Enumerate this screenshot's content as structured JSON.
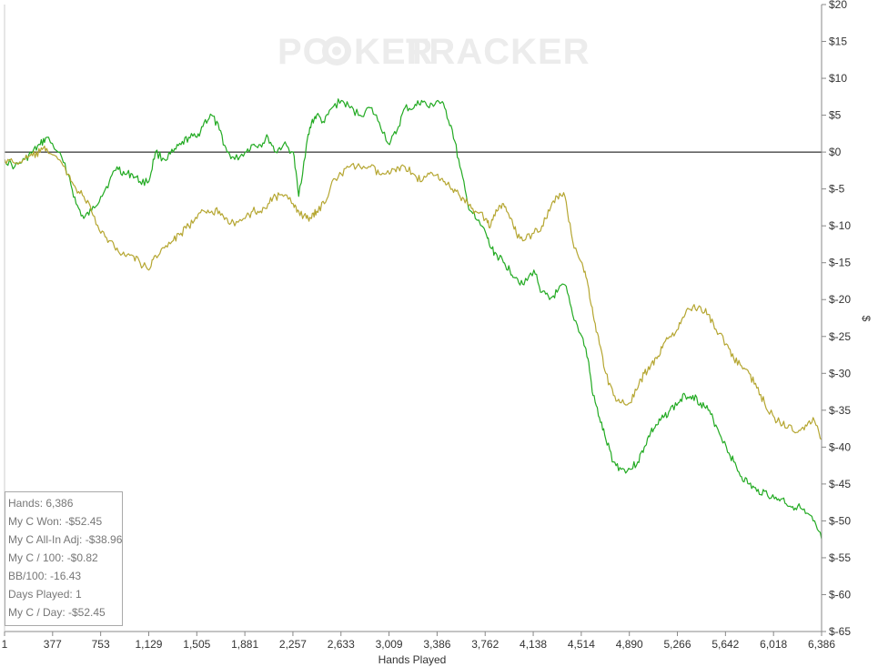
{
  "watermark": {
    "part1": "PO",
    "part2": "KER",
    "part3": "TRACKER"
  },
  "stats_box": [
    {
      "label": "Hands",
      "value": "6,386"
    },
    {
      "label": "My C Won",
      "value": "-$52.45"
    },
    {
      "label": "My C All-In Adj",
      "value": "-$38.96"
    },
    {
      "label": "My C / 100",
      "value": "-$0.82"
    },
    {
      "label": "BB/100",
      "value": "-16.43"
    },
    {
      "label": "Days Played",
      "value": "1"
    },
    {
      "label": "My C / Day",
      "value": "-$52.45"
    }
  ],
  "chart_data": {
    "type": "line",
    "xlabel": "Hands Played",
    "ylabel": "$",
    "xlim": [
      1,
      6386
    ],
    "ylim": [
      -65,
      20
    ],
    "x_ticks": [
      "1",
      "377",
      "753",
      "1,129",
      "1,505",
      "1,881",
      "2,257",
      "2,633",
      "3,009",
      "3,386",
      "3,762",
      "4,138",
      "4,514",
      "4,890",
      "5,266",
      "5,642",
      "6,018",
      "6,386"
    ],
    "y_ticks": [
      "$20",
      "$15",
      "$10",
      "$5",
      "$0",
      "$-5",
      "$-10",
      "$-15",
      "$-20",
      "$-25",
      "$-30",
      "$-35",
      "$-40",
      "$-45",
      "$-50",
      "$-55",
      "$-60",
      "$-65"
    ],
    "y_tick_values": [
      20,
      15,
      10,
      5,
      0,
      -5,
      -10,
      -15,
      -20,
      -25,
      -30,
      -35,
      -40,
      -45,
      -50,
      -55,
      -60,
      -65
    ],
    "zero_line": 0,
    "series": [
      {
        "color": "#22aa22",
        "x": [
          1,
          80,
          160,
          220,
          280,
          330,
          420,
          500,
          560,
          620,
          680,
          753,
          820,
          880,
          940,
          1000,
          1060,
          1129,
          1180,
          1250,
          1320,
          1380,
          1440,
          1505,
          1560,
          1620,
          1680,
          1740,
          1800,
          1881,
          1940,
          2000,
          2060,
          2120,
          2180,
          2257,
          2300,
          2360,
          2400,
          2440,
          2500,
          2560,
          2633,
          2700,
          2780,
          2860,
          2930,
          3009,
          3070,
          3130,
          3200,
          3260,
          3320,
          3386,
          3440,
          3500,
          3560,
          3620,
          3680,
          3762,
          3800,
          3850,
          3900,
          3950,
          4000,
          4060,
          4138,
          4200,
          4260,
          4320,
          4380,
          4440,
          4514,
          4560,
          4600,
          4650,
          4700,
          4760,
          4820,
          4890,
          4950,
          5000,
          5050,
          5100,
          5150,
          5200,
          5266,
          5320,
          5380,
          5440,
          5500,
          5560,
          5642,
          5700,
          5760,
          5820,
          5880,
          5940,
          6018,
          6080,
          6140,
          6200,
          6260,
          6320,
          6386
        ],
        "values": [
          -1,
          -2,
          -1,
          0,
          1,
          2,
          0,
          -3,
          -7,
          -9,
          -8,
          -6,
          -4,
          -2,
          -3,
          -3,
          -4,
          -4,
          0,
          -1,
          0,
          1,
          2,
          2,
          4,
          5,
          3,
          0,
          -1,
          0,
          1,
          1,
          2,
          0,
          1,
          0,
          -6,
          1,
          4,
          5,
          4,
          6,
          7,
          6,
          5,
          6,
          4,
          1,
          3,
          6,
          6,
          7,
          6,
          7,
          6,
          3,
          -2,
          -7,
          -9,
          -11,
          -13,
          -14,
          -15,
          -16,
          -17,
          -18,
          -16,
          -19,
          -20,
          -19,
          -18,
          -22,
          -25,
          -28,
          -33,
          -36,
          -39,
          -42,
          -43,
          -43,
          -42,
          -40,
          -38,
          -37,
          -36,
          -35,
          -34,
          -33,
          -33,
          -34,
          -35,
          -37,
          -40,
          -42,
          -44,
          -45,
          -46,
          -46,
          -47,
          -47,
          -48,
          -48,
          -49,
          -50,
          -52.45
        ]
      },
      {
        "color": "#b5a631",
        "x": [
          1,
          80,
          160,
          220,
          280,
          330,
          420,
          500,
          560,
          620,
          680,
          753,
          820,
          880,
          940,
          1000,
          1060,
          1129,
          1180,
          1250,
          1320,
          1380,
          1440,
          1505,
          1560,
          1620,
          1680,
          1740,
          1800,
          1881,
          1940,
          2000,
          2060,
          2120,
          2180,
          2257,
          2300,
          2360,
          2400,
          2440,
          2500,
          2560,
          2633,
          2700,
          2780,
          2860,
          2930,
          3009,
          3070,
          3130,
          3200,
          3260,
          3320,
          3386,
          3440,
          3500,
          3560,
          3620,
          3680,
          3762,
          3800,
          3850,
          3900,
          3950,
          4000,
          4060,
          4138,
          4200,
          4260,
          4320,
          4380,
          4440,
          4514,
          4560,
          4600,
          4650,
          4700,
          4760,
          4820,
          4890,
          4950,
          5000,
          5050,
          5100,
          5150,
          5200,
          5266,
          5320,
          5380,
          5440,
          5500,
          5560,
          5642,
          5700,
          5760,
          5820,
          5880,
          5940,
          6018,
          6080,
          6140,
          6200,
          6260,
          6320,
          6386
        ],
        "values": [
          -1,
          -1.5,
          -1,
          -0.5,
          0,
          0.5,
          -1,
          -3,
          -5,
          -6,
          -8,
          -11,
          -12,
          -13,
          -14,
          -14,
          -15,
          -16,
          -14,
          -13,
          -12,
          -11,
          -10,
          -9,
          -8,
          -8,
          -8,
          -9,
          -10,
          -9,
          -8,
          -8,
          -7,
          -6,
          -6,
          -7,
          -8,
          -9,
          -9,
          -8,
          -7,
          -4,
          -3,
          -2,
          -2,
          -2,
          -3,
          -3,
          -2,
          -2,
          -3,
          -4,
          -3,
          -3,
          -4,
          -5,
          -6,
          -7,
          -8,
          -9,
          -10,
          -8,
          -7,
          -9,
          -11,
          -12,
          -11,
          -10,
          -8,
          -6,
          -6,
          -12,
          -15,
          -18,
          -22,
          -26,
          -30,
          -33,
          -34,
          -34,
          -32,
          -30,
          -29,
          -28,
          -26,
          -25,
          -24,
          -22,
          -21,
          -21,
          -22,
          -24,
          -26,
          -28,
          -29,
          -30,
          -32,
          -34,
          -36,
          -37,
          -37,
          -38,
          -37,
          -36,
          -38.96
        ]
      }
    ]
  }
}
